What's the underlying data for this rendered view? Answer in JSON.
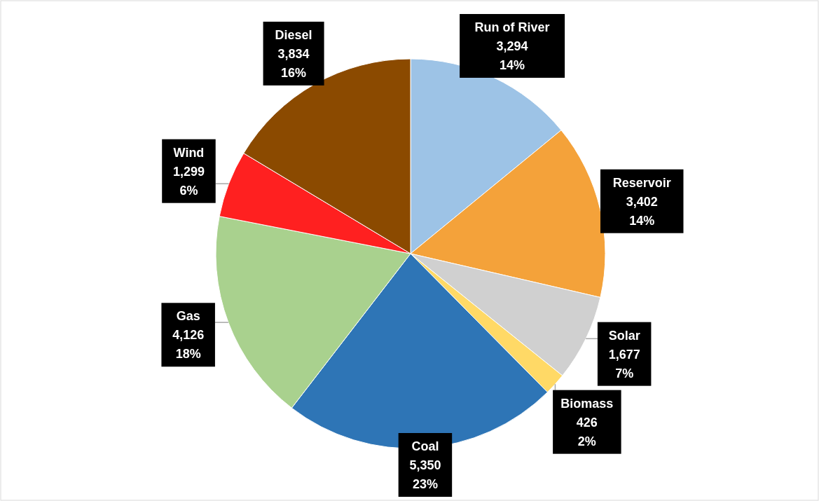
{
  "chart_data": {
    "type": "pie",
    "categories": [
      "Run of River",
      "Reservoir",
      "Solar",
      "Biomass",
      "Coal",
      "Gas",
      "Wind",
      "Diesel"
    ],
    "values": [
      3294,
      3402,
      1677,
      426,
      5350,
      4126,
      1299,
      3834
    ],
    "colors": [
      "#9dc3e6",
      "#f4a23a",
      "#d0d0d0",
      "#ffd966",
      "#2e75b6",
      "#a9d18e",
      "#ff2020",
      "#8b4a00"
    ],
    "value_labels": [
      "3,294\n14%",
      "3,402\n14%",
      "1,677\n7%",
      "426\n2%",
      "5,350\n23%",
      "4,126\n18%",
      "1,299\n6%",
      "3,834\n16%"
    ],
    "legend": false
  }
}
